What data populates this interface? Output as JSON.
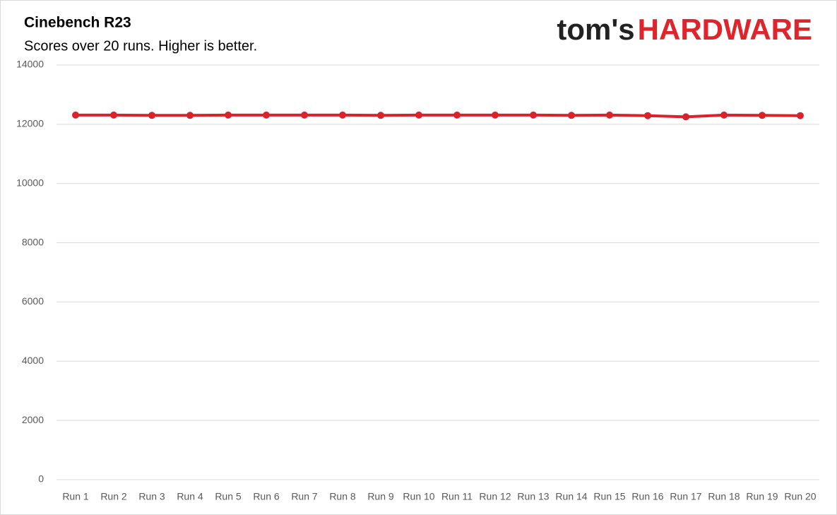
{
  "chart_data": {
    "type": "line",
    "title": "Cinebench R23",
    "subtitle": "Scores over 20 runs. Higher is better.",
    "logo": {
      "left": "tom's",
      "right": "HARDWARE"
    },
    "categories": [
      "Run 1",
      "Run 2",
      "Run 3",
      "Run 4",
      "Run 5",
      "Run 6",
      "Run 7",
      "Run 8",
      "Run 9",
      "Run 10",
      "Run 11",
      "Run 12",
      "Run 13",
      "Run 14",
      "Run 15",
      "Run 16",
      "Run 17",
      "Run 18",
      "Run 19",
      "Run 20"
    ],
    "values": [
      12310,
      12310,
      12300,
      12300,
      12310,
      12310,
      12310,
      12310,
      12300,
      12310,
      12310,
      12310,
      12310,
      12300,
      12310,
      12290,
      12250,
      12310,
      12300,
      12290
    ],
    "color": "#d8232a",
    "ylim": [
      0,
      14000
    ],
    "yticks": [
      0,
      2000,
      4000,
      6000,
      8000,
      10000,
      12000,
      14000
    ],
    "grid": true
  }
}
